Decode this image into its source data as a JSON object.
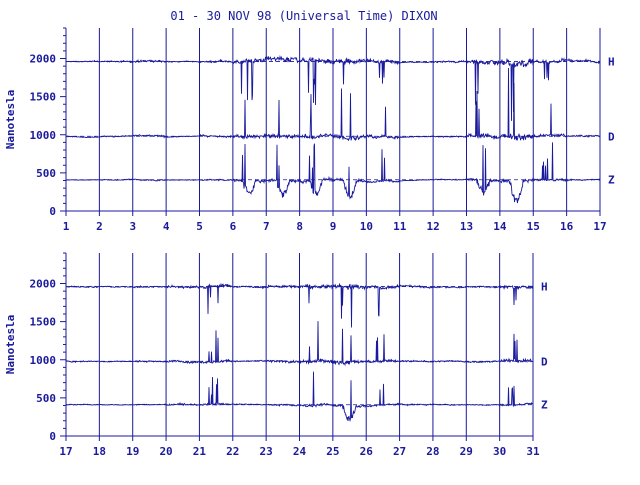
{
  "chart_data": {
    "type": "line",
    "title": "01 - 30 NOV 98 (Universal Time) DIXON",
    "ylabel": "Nanotesla",
    "components": [
      "H",
      "D",
      "Z"
    ],
    "colors": {
      "line": "#1a1a9c",
      "background": "#ffffff"
    },
    "panels": [
      {
        "x_ticks": [
          "1",
          "2",
          "3",
          "4",
          "5",
          "6",
          "7",
          "8",
          "9",
          "10",
          "11",
          "12",
          "13",
          "14",
          "15",
          "16",
          "17"
        ],
        "xlim": [
          1,
          17
        ],
        "y_ticks": [
          "0",
          "500",
          "1000",
          "1500",
          "2000"
        ],
        "ylim": [
          0,
          2400
        ],
        "series": [
          {
            "name": "H",
            "baseline": 1960
          },
          {
            "name": "D",
            "baseline": 980
          },
          {
            "name": "Z",
            "baseline": 410
          }
        ]
      },
      {
        "x_ticks": [
          "17",
          "18",
          "19",
          "20",
          "21",
          "22",
          "23",
          "24",
          "25",
          "26",
          "27",
          "28",
          "29",
          "30",
          "31"
        ],
        "xlim": [
          17,
          31
        ],
        "y_ticks": [
          "0",
          "500",
          "1000",
          "1500",
          "2000"
        ],
        "ylim": [
          0,
          2400
        ],
        "series": [
          {
            "name": "H",
            "baseline": 1960
          },
          {
            "name": "D",
            "baseline": 980
          },
          {
            "name": "Z",
            "baseline": 410
          }
        ]
      }
    ]
  }
}
